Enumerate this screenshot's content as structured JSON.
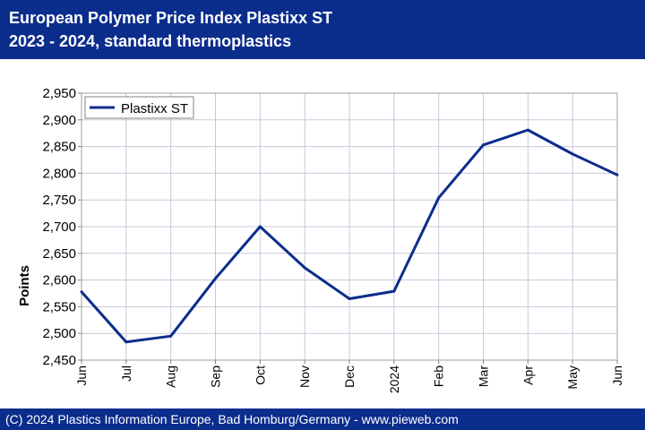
{
  "header": {
    "title_line1": "European Polymer Price Index Plastixx ST",
    "title_line2": "2023 - 2024, standard thermoplastics"
  },
  "footer": {
    "text": "(C) 2024 Plastics Information Europe, Bad Homburg/Germany - www.pieweb.com"
  },
  "colors": {
    "header_bg": "#0b2d8c",
    "series": "#0b2d8c",
    "grid": "#c8c8dc"
  },
  "chart_data": {
    "type": "line",
    "categories": [
      "Jun",
      "Jul",
      "Aug",
      "Sep",
      "Oct",
      "Nov",
      "Dec",
      "2024",
      "Feb",
      "Mar",
      "Apr",
      "May",
      "Jun"
    ],
    "series": [
      {
        "name": "Plastixx ST",
        "values": [
          2578,
          2484,
          2495,
          2603,
          2700,
          2623,
          2565,
          2579,
          2754,
          2853,
          2881,
          2836,
          2797
        ]
      }
    ],
    "ylabel": "Points",
    "ylim": [
      2450,
      2950
    ],
    "yticks": [
      2450,
      2500,
      2550,
      2600,
      2650,
      2700,
      2750,
      2800,
      2850,
      2900,
      2950
    ],
    "ytick_labels": [
      "2,450",
      "2,500",
      "2,550",
      "2,600",
      "2,650",
      "2,700",
      "2,750",
      "2,800",
      "2,850",
      "2,900",
      "2,950"
    ],
    "grid": true,
    "legend_position": "top-left"
  }
}
